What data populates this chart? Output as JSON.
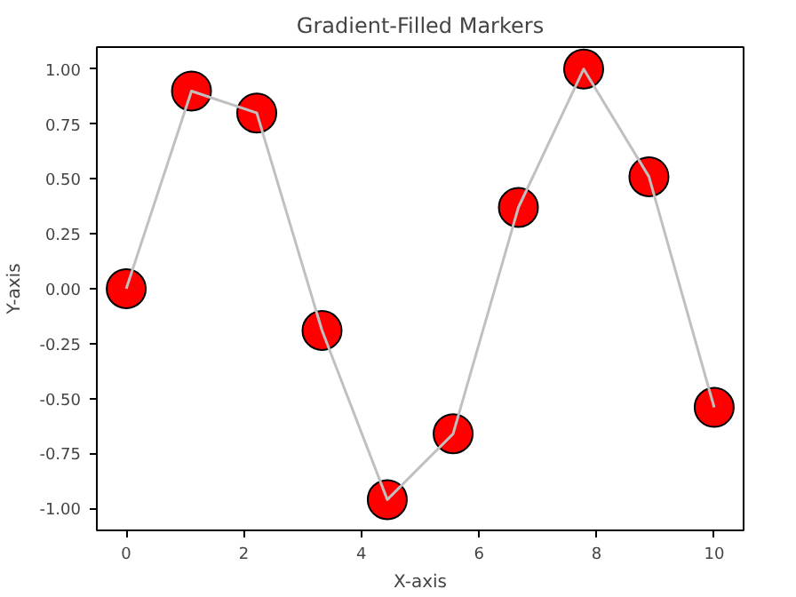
{
  "chart_data": {
    "type": "line",
    "title": "Gradient-Filled Markers",
    "xlabel": "X-axis",
    "ylabel": "Y-axis",
    "x": [
      0,
      1.11,
      2.22,
      3.33,
      4.44,
      5.56,
      6.67,
      7.78,
      8.89,
      10
    ],
    "series": [
      {
        "type": "line",
        "color": "#c0c0c0",
        "marker": "none",
        "values": [
          0,
          0.9,
          0.8,
          -0.19,
          -0.96,
          -0.66,
          0.37,
          1.0,
          0.51,
          -0.54
        ]
      },
      {
        "type": "scatter",
        "color": "#ff0000",
        "marker": "circle",
        "values": [
          0,
          0.9,
          0.8,
          -0.19,
          -0.96,
          -0.66,
          0.37,
          1.0,
          0.51,
          -0.54
        ]
      }
    ],
    "xlim": [
      -0.5,
      10.5
    ],
    "ylim": [
      -1.1,
      1.1
    ],
    "xticks": [
      0,
      2,
      4,
      6,
      8,
      10
    ],
    "yticks": [
      {
        "value": -1,
        "label": "-1.00"
      },
      {
        "value": -0.75,
        "label": "-0.75"
      },
      {
        "value": -0.5,
        "label": "-0.50"
      },
      {
        "value": -0.25,
        "label": "-0.25"
      },
      {
        "value": 0,
        "label": "0.00"
      },
      {
        "value": 0.25,
        "label": "0.25"
      },
      {
        "value": 0.5,
        "label": "0.50"
      },
      {
        "value": 0.75,
        "label": "0.75"
      },
      {
        "value": 1,
        "label": "1.00"
      }
    ],
    "grid": false
  }
}
